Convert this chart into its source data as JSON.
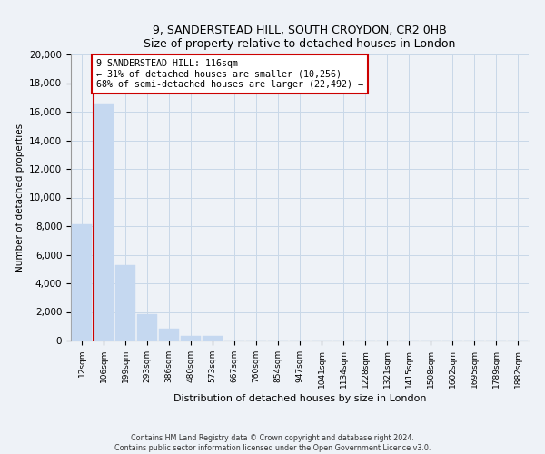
{
  "title1": "9, SANDERSTEAD HILL, SOUTH CROYDON, CR2 0HB",
  "title2": "Size of property relative to detached houses in London",
  "xlabel": "Distribution of detached houses by size in London",
  "ylabel": "Number of detached properties",
  "bar_labels": [
    "12sqm",
    "106sqm",
    "199sqm",
    "293sqm",
    "386sqm",
    "480sqm",
    "573sqm",
    "667sqm",
    "760sqm",
    "854sqm",
    "947sqm",
    "1041sqm",
    "1134sqm",
    "1228sqm",
    "1321sqm",
    "1415sqm",
    "1508sqm",
    "1602sqm",
    "1695sqm",
    "1789sqm",
    "1882sqm"
  ],
  "bar_values": [
    8100,
    16600,
    5300,
    1850,
    800,
    300,
    300,
    0,
    0,
    0,
    0,
    0,
    0,
    0,
    0,
    0,
    0,
    0,
    0,
    0,
    0
  ],
  "bar_color": "#c5d8f0",
  "bar_edge_color": "#c5d8f0",
  "vline_color": "#cc0000",
  "annotation_box_text": "9 SANDERSTEAD HILL: 116sqm\n← 31% of detached houses are smaller (10,256)\n68% of semi-detached houses are larger (22,492) →",
  "box_edge_color": "#cc0000",
  "ylim": [
    0,
    20000
  ],
  "yticks": [
    0,
    2000,
    4000,
    6000,
    8000,
    10000,
    12000,
    14000,
    16000,
    18000,
    20000
  ],
  "grid_color": "#c8d8e8",
  "footer1": "Contains HM Land Registry data © Crown copyright and database right 2024.",
  "footer2": "Contains public sector information licensed under the Open Government Licence v3.0.",
  "bg_color": "#eef2f7",
  "plot_bg_color": "#eef2f7"
}
